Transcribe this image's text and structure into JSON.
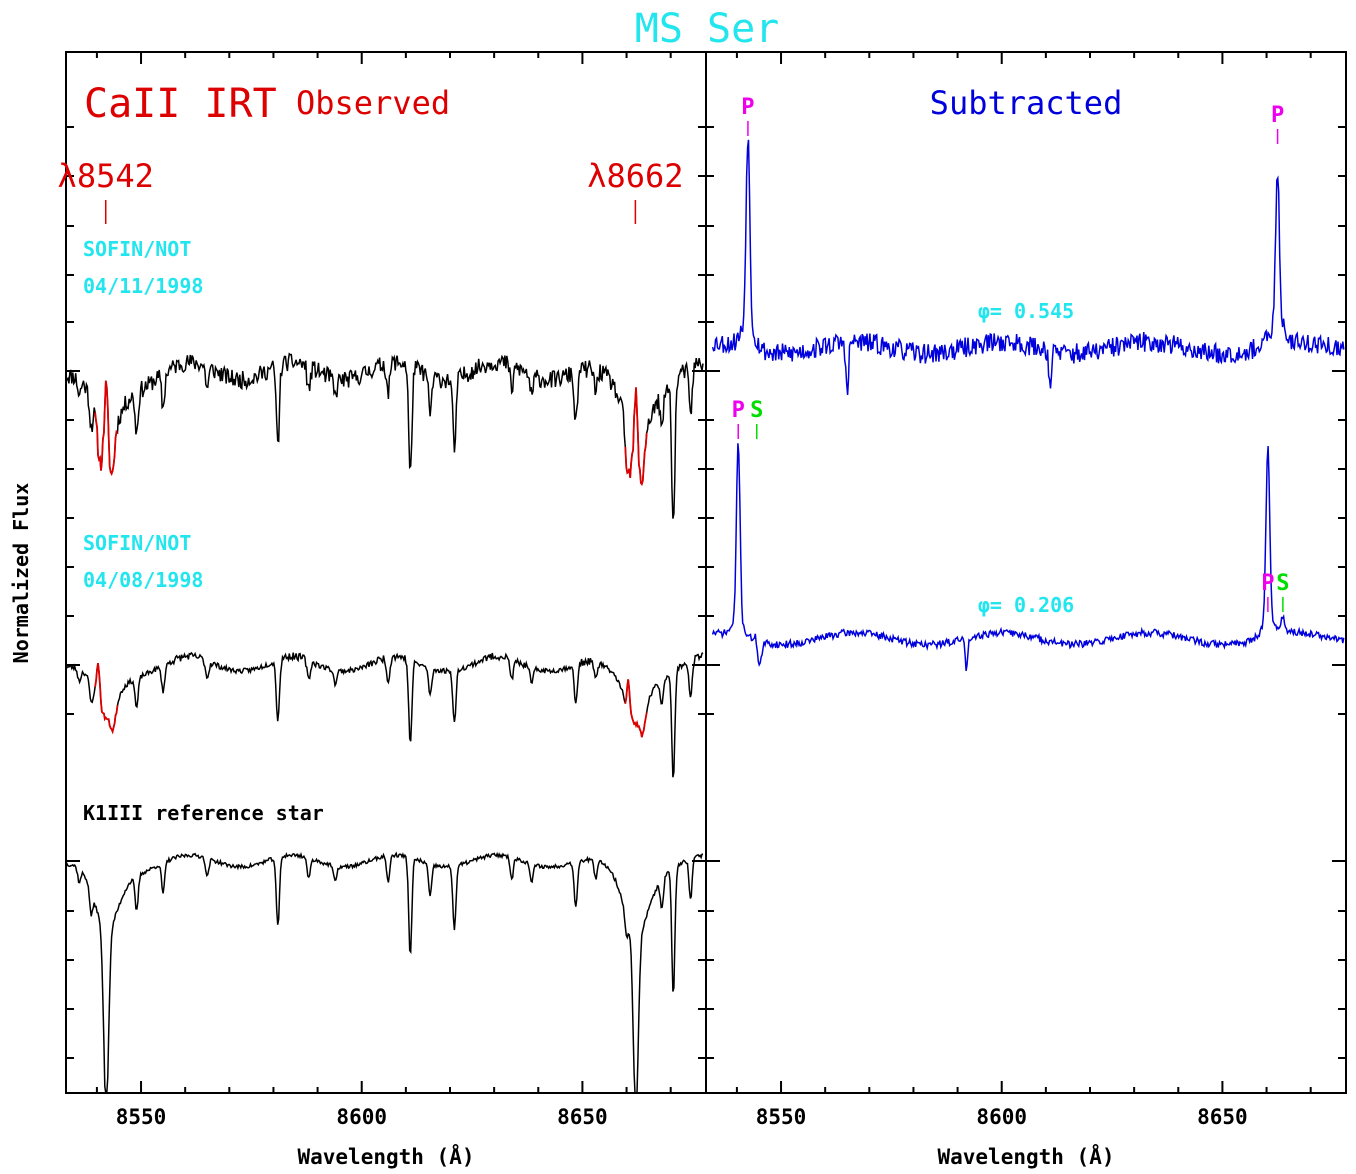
{
  "title": "MS Ser",
  "ylabel": "Normalized Flux",
  "colors": {
    "title": "#22e5ee",
    "observed": "#dd0000",
    "subtracted": "#0000dd",
    "primary": "#ee00ee",
    "secondary": "#00dd00",
    "info": "#22e5ee",
    "spectrum": "#000000"
  },
  "chart_data": [
    {
      "type": "line",
      "panel": "left",
      "header": "CaII  IRT",
      "subheader": "Observed",
      "xlabel": "Wavelength (Å)",
      "xlim": [
        8533,
        8678
      ],
      "xticks": [
        8550,
        8600,
        8650
      ],
      "xtick_labels": [
        "8550",
        "8600",
        "8650"
      ],
      "line_markers": [
        {
          "label": "λ8542",
          "x": 8542
        },
        {
          "label": "λ8662",
          "x": 8662
        }
      ],
      "series": [
        {
          "instrument": "SOFIN/NOT",
          "date": "04/11/1998",
          "continuum": 1.0,
          "core_color": "observed"
        },
        {
          "instrument": "SOFIN/NOT",
          "date": "04/08/1998",
          "continuum": 0.0,
          "core_color": "observed"
        },
        {
          "name": "K1III reference star",
          "continuum": -1.0
        }
      ]
    },
    {
      "type": "line",
      "panel": "right",
      "header": "Subtracted",
      "xlabel": "Wavelength (Å)",
      "xlim": [
        8533,
        8678
      ],
      "xticks": [
        8550,
        8600,
        8650
      ],
      "xtick_labels": [
        "8550",
        "8600",
        "8650"
      ],
      "series": [
        {
          "phase_label": "φ=  0.545",
          "components": [
            {
              "label": "P",
              "x": 8542.5
            },
            {
              "label": "P",
              "x": 8662.5
            }
          ]
        },
        {
          "phase_label": "φ=  0.206",
          "components": [
            {
              "label": "P",
              "x": 8540.3
            },
            {
              "label": "S",
              "x": 8544.5
            },
            {
              "label": "P",
              "x": 8660.3
            },
            {
              "label": "S",
              "x": 8663.7
            }
          ]
        }
      ]
    }
  ]
}
